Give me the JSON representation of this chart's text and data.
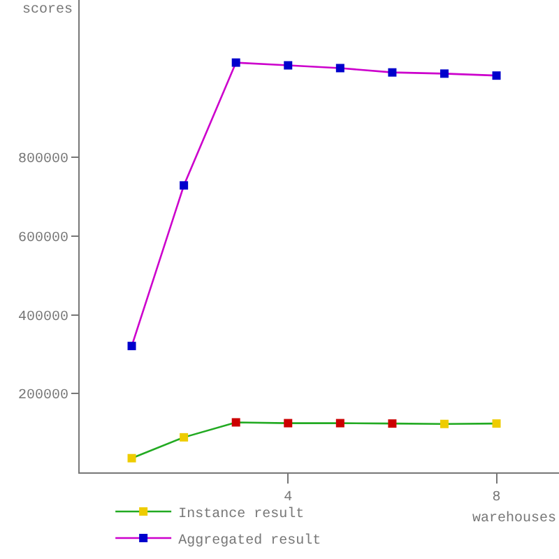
{
  "chart_data": {
    "type": "line",
    "xlabel": "warehouses",
    "ylabel": "scores",
    "x": [
      1,
      2,
      3,
      4,
      5,
      6,
      7,
      8
    ],
    "series": [
      {
        "name": "Instance result",
        "color": "#22aa22",
        "colors": [
          "#eecc00",
          "#eecc00",
          "#cc0000",
          "#cc0000",
          "#cc0000",
          "#cc0000",
          "#eecc00",
          "#eecc00"
        ],
        "values": [
          36000,
          89000,
          127000,
          125000,
          125000,
          124000,
          123000,
          124000
        ]
      },
      {
        "name": "Aggregated result",
        "color": "#cc00cc",
        "colors": [
          "#0000cc",
          "#0000cc",
          "#0000cc",
          "#0000cc",
          "#0000cc",
          "#0000cc",
          "#0000cc",
          "#0000cc"
        ],
        "values": [
          321000,
          729000,
          1041000,
          1034000,
          1027000,
          1016000,
          1013000,
          1008000
        ]
      }
    ],
    "xlim": [
      0,
      9.2
    ],
    "xticks": [
      4,
      8
    ],
    "ylim": [
      0,
      1200000
    ],
    "yticks": [
      200000,
      400000,
      600000,
      800000
    ],
    "grid": false,
    "legend": "bottom left",
    "marker": "square",
    "line_style": "solid"
  }
}
